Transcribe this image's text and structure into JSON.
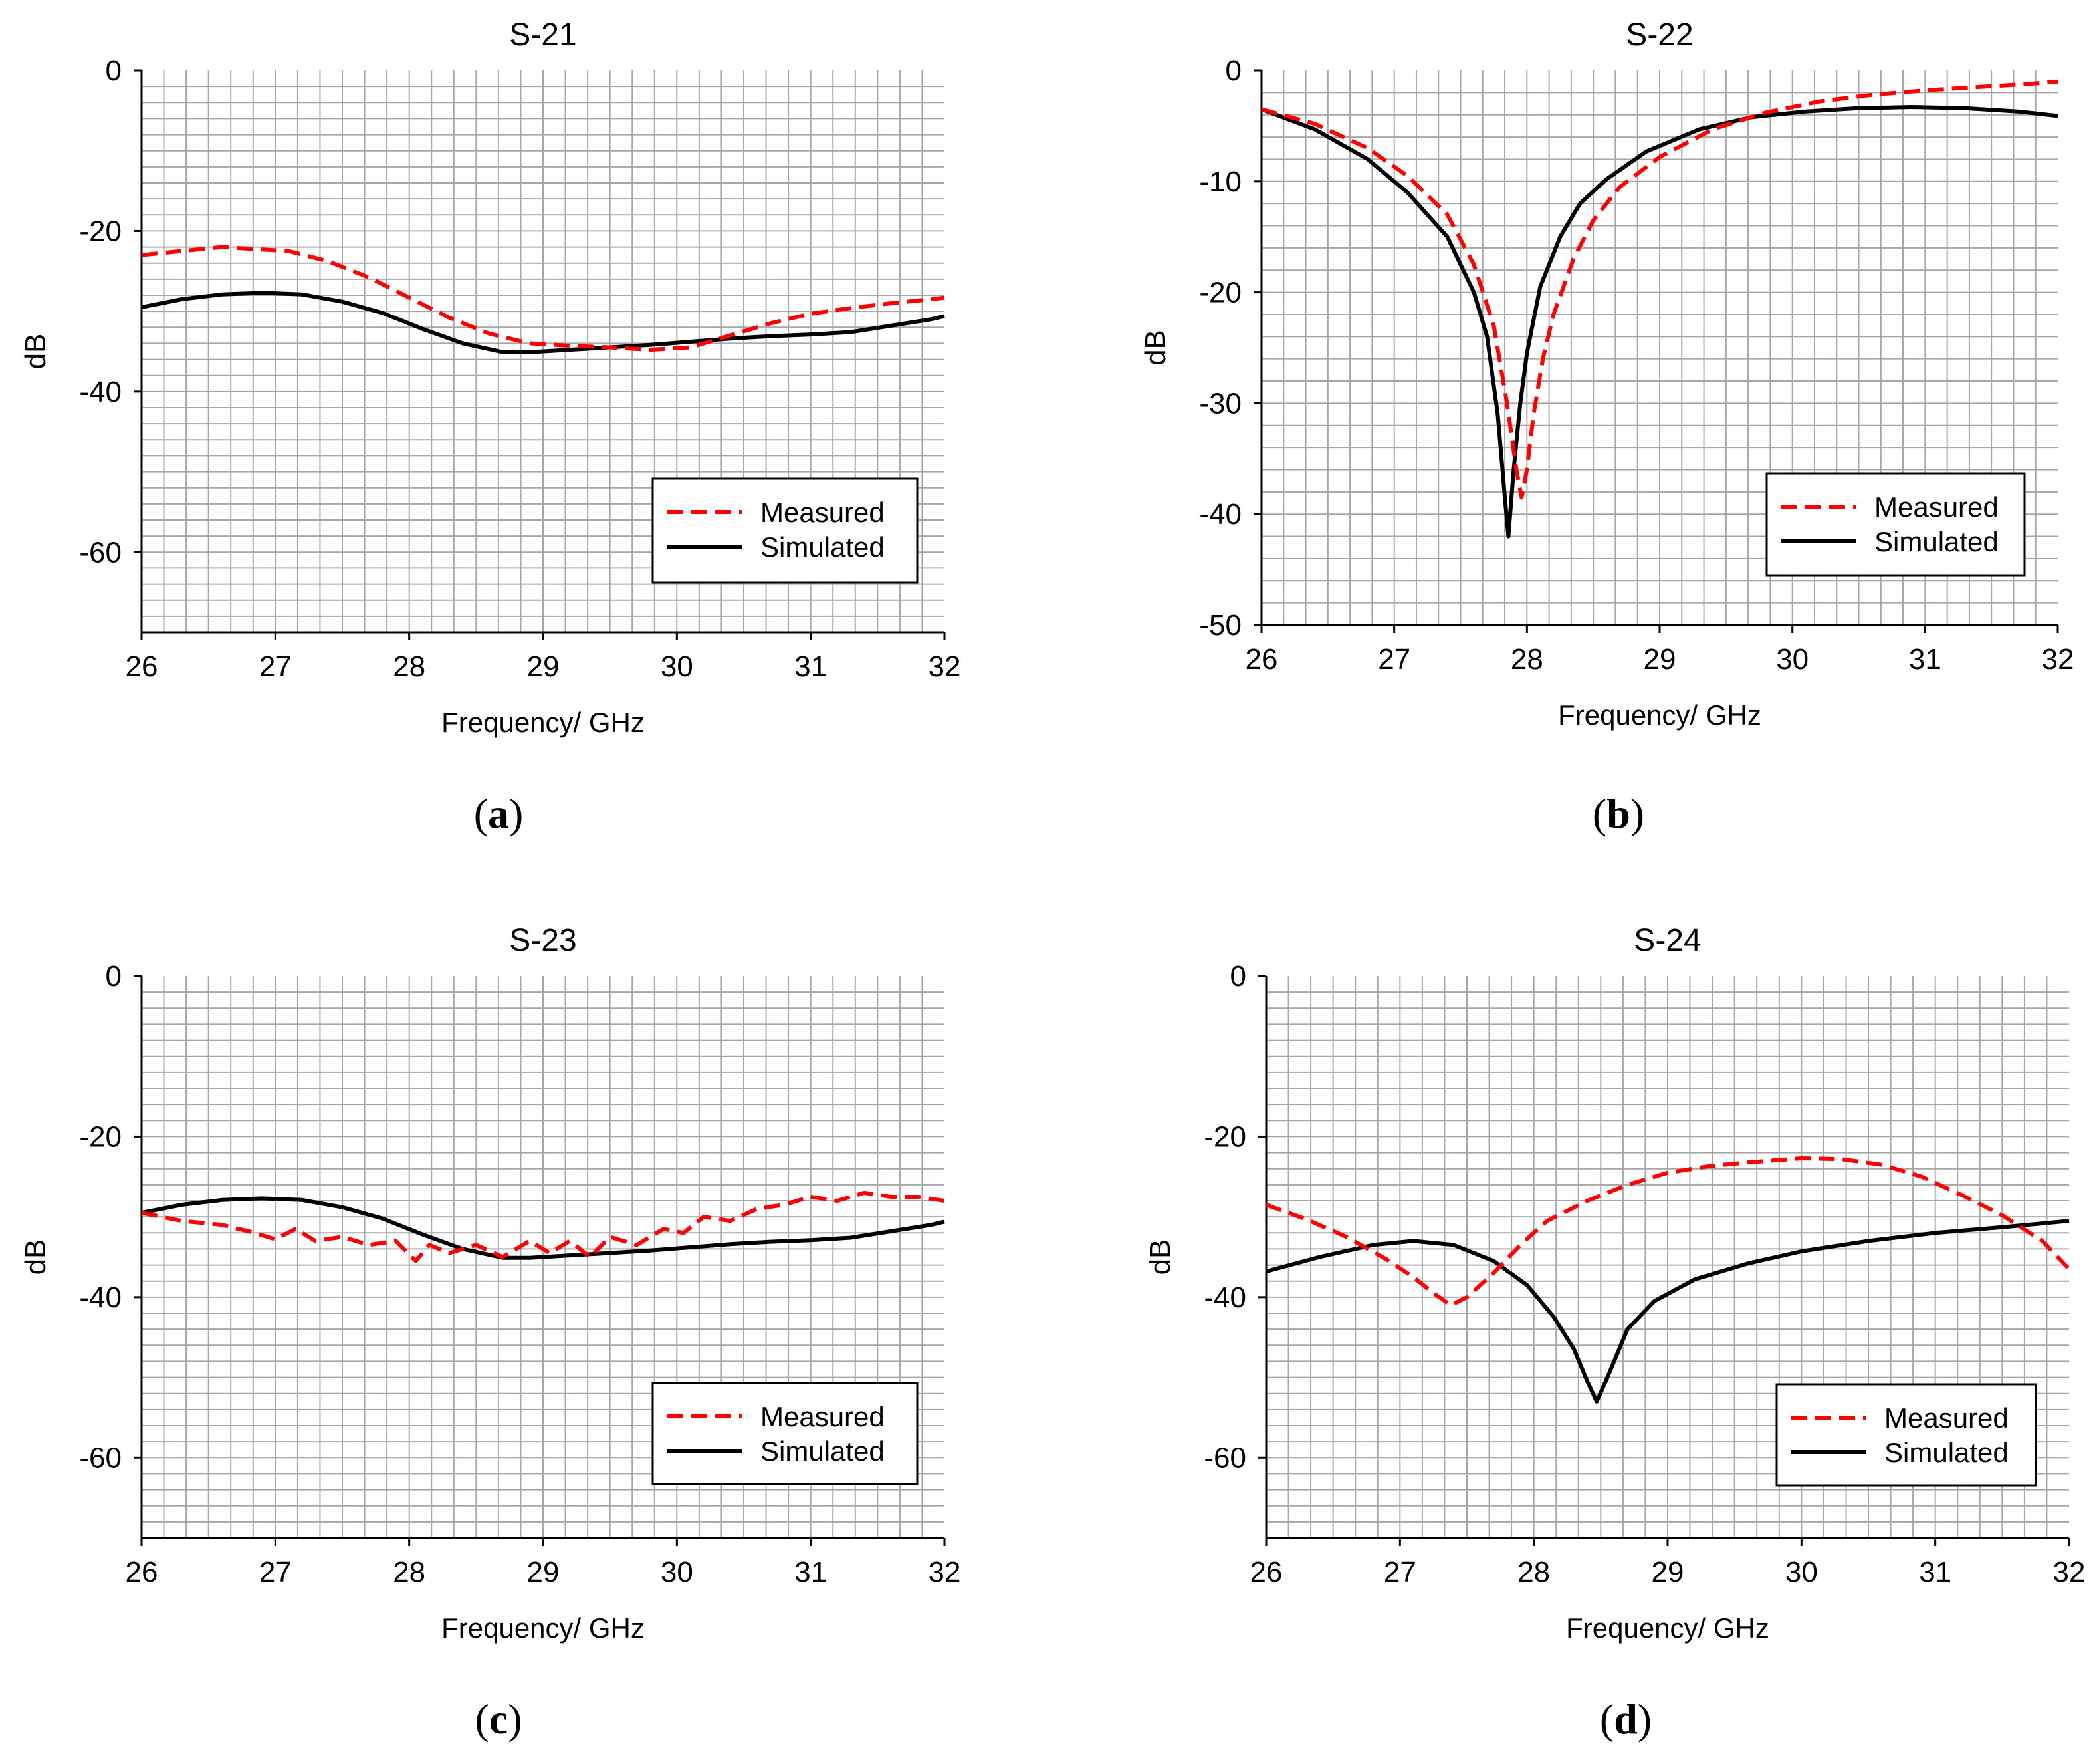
{
  "figure": {
    "captions": [
      "(a)",
      "(b)",
      "(c)",
      "(d)"
    ],
    "colors": {
      "measured": "#ff0000",
      "simulated": "#000000",
      "grid": "#a6a6a6",
      "background": "#ffffff"
    }
  },
  "chart_data": [
    {
      "type": "line",
      "title": "S-21",
      "xlabel": "Frequency/ GHz",
      "ylabel": "dB",
      "xlim": [
        26,
        32
      ],
      "ylim": [
        -70,
        0
      ],
      "xticks": [
        26,
        27,
        28,
        29,
        30,
        31,
        32
      ],
      "yticks": [
        0,
        -20,
        -40,
        -60
      ],
      "grid": true,
      "legend_position": "bottom-right",
      "series": [
        {
          "name": "Measured",
          "style": "dashed",
          "x": [
            26,
            26.3,
            26.6,
            26.9,
            27.1,
            27.4,
            27.7,
            28.0,
            28.3,
            28.6,
            28.9,
            29.2,
            29.5,
            29.8,
            30.1,
            30.4,
            30.7,
            31.0,
            31.3,
            31.6,
            31.9,
            32
          ],
          "y": [
            -23,
            -22.5,
            -22,
            -22.3,
            -22.5,
            -23.8,
            -25.8,
            -28.3,
            -30.8,
            -32.8,
            -34,
            -34.3,
            -34.5,
            -34.8,
            -34.5,
            -33,
            -31.5,
            -30.3,
            -29.6,
            -29,
            -28.5,
            -28.3
          ]
        },
        {
          "name": "Simulated",
          "style": "solid",
          "x": [
            26,
            26.3,
            26.6,
            26.9,
            27.2,
            27.5,
            27.8,
            28.1,
            28.4,
            28.7,
            28.9,
            29.2,
            29.5,
            29.8,
            30.1,
            30.4,
            30.7,
            31.0,
            31.3,
            31.6,
            31.9,
            32
          ],
          "y": [
            -29.5,
            -28.5,
            -27.9,
            -27.7,
            -27.9,
            -28.8,
            -30.2,
            -32.2,
            -34,
            -35.1,
            -35.1,
            -34.8,
            -34.5,
            -34.2,
            -33.8,
            -33.4,
            -33.1,
            -32.9,
            -32.6,
            -31.8,
            -31,
            -30.6
          ]
        }
      ]
    },
    {
      "type": "line",
      "title": "S-22",
      "xlabel": "Frequency/ GHz",
      "ylabel": "dB",
      "xlim": [
        26,
        32
      ],
      "ylim": [
        -50,
        0
      ],
      "xticks": [
        26,
        27,
        28,
        29,
        30,
        31,
        32
      ],
      "yticks": [
        0,
        -10,
        -20,
        -30,
        -40,
        -50
      ],
      "grid": true,
      "legend_position": "bottom-right",
      "series": [
        {
          "name": "Measured",
          "style": "dashed",
          "x": [
            26,
            26.4,
            26.8,
            27.1,
            27.4,
            27.6,
            27.75,
            27.85,
            27.92,
            27.96,
            28.0,
            28.05,
            28.12,
            28.2,
            28.35,
            28.5,
            28.7,
            29.0,
            29.4,
            29.8,
            30.2,
            30.6,
            31.0,
            31.4,
            31.8,
            32
          ],
          "y": [
            -3.5,
            -4.8,
            -7,
            -9.5,
            -13,
            -17.5,
            -23,
            -30,
            -36,
            -38.5,
            -36,
            -31,
            -26,
            -22,
            -17,
            -13.5,
            -10.5,
            -7.8,
            -5.3,
            -3.8,
            -2.8,
            -2.2,
            -1.8,
            -1.5,
            -1.2,
            -1.0
          ]
        },
        {
          "name": "Simulated",
          "style": "solid",
          "x": [
            26,
            26.4,
            26.8,
            27.1,
            27.4,
            27.6,
            27.7,
            27.78,
            27.83,
            27.86,
            27.9,
            27.95,
            28.0,
            28.1,
            28.25,
            28.4,
            28.6,
            28.9,
            29.3,
            29.7,
            30.1,
            30.5,
            30.9,
            31.3,
            31.7,
            32
          ],
          "y": [
            -3.5,
            -5.3,
            -8,
            -11,
            -15,
            -20,
            -24,
            -31,
            -38,
            -42,
            -36,
            -30,
            -25.5,
            -19.5,
            -15,
            -12,
            -9.8,
            -7.3,
            -5.3,
            -4.2,
            -3.7,
            -3.4,
            -3.3,
            -3.4,
            -3.7,
            -4.1
          ]
        }
      ]
    },
    {
      "type": "line",
      "title": "S-23",
      "xlabel": "Frequency/ GHz",
      "ylabel": "dB",
      "xlim": [
        26,
        32
      ],
      "ylim": [
        -70,
        0
      ],
      "xticks": [
        26,
        27,
        28,
        29,
        30,
        31,
        32
      ],
      "yticks": [
        0,
        -20,
        -40,
        -60
      ],
      "grid": true,
      "legend_position": "bottom-right",
      "series": [
        {
          "name": "Measured",
          "style": "dashed",
          "x": [
            26,
            26.3,
            26.6,
            26.8,
            27.0,
            27.15,
            27.3,
            27.5,
            27.7,
            27.9,
            28.05,
            28.15,
            28.3,
            28.5,
            28.7,
            28.9,
            29.05,
            29.2,
            29.35,
            29.5,
            29.7,
            29.9,
            30.05,
            30.2,
            30.4,
            30.6,
            30.8,
            31.0,
            31.2,
            31.4,
            31.6,
            31.8,
            32
          ],
          "y": [
            -29.5,
            -30.5,
            -31,
            -31.8,
            -32.8,
            -31.5,
            -33,
            -32.5,
            -33.5,
            -33,
            -35.5,
            -33.5,
            -34.5,
            -33.5,
            -35,
            -33,
            -34.5,
            -33,
            -35,
            -32.5,
            -33.5,
            -31.5,
            -32,
            -30,
            -30.5,
            -29,
            -28.5,
            -27.5,
            -28,
            -27,
            -27.5,
            -27.5,
            -28
          ]
        },
        {
          "name": "Simulated",
          "style": "solid",
          "x": [
            26,
            26.3,
            26.6,
            26.9,
            27.2,
            27.5,
            27.8,
            28.1,
            28.4,
            28.7,
            28.9,
            29.2,
            29.5,
            29.8,
            30.1,
            30.4,
            30.7,
            31.0,
            31.3,
            31.6,
            31.9,
            32
          ],
          "y": [
            -29.5,
            -28.5,
            -27.9,
            -27.7,
            -27.9,
            -28.8,
            -30.2,
            -32.2,
            -34,
            -35.1,
            -35.1,
            -34.8,
            -34.5,
            -34.2,
            -33.8,
            -33.4,
            -33.1,
            -32.9,
            -32.6,
            -31.8,
            -31,
            -30.6
          ]
        }
      ]
    },
    {
      "type": "line",
      "title": "S-24",
      "xlabel": "Frequency/ GHz",
      "ylabel": "dB",
      "xlim": [
        26,
        32
      ],
      "ylim": [
        -70,
        0
      ],
      "xticks": [
        26,
        27,
        28,
        29,
        30,
        31,
        32
      ],
      "yticks": [
        0,
        -20,
        -40,
        -60
      ],
      "grid": true,
      "legend_position": "bottom-right",
      "series": [
        {
          "name": "Measured",
          "style": "dashed",
          "x": [
            26,
            26.3,
            26.6,
            26.9,
            27.1,
            27.25,
            27.38,
            27.5,
            27.7,
            27.9,
            28.1,
            28.4,
            28.7,
            29.0,
            29.3,
            29.6,
            30.0,
            30.3,
            30.6,
            30.9,
            31.2,
            31.5,
            31.8,
            32
          ],
          "y": [
            -28.5,
            -30.3,
            -32.5,
            -35.3,
            -37.5,
            -39.5,
            -41,
            -40,
            -37,
            -33.5,
            -30.5,
            -28,
            -26,
            -24.5,
            -23.7,
            -23.2,
            -22.7,
            -22.8,
            -23.5,
            -25,
            -27.3,
            -29.8,
            -33,
            -36.5
          ]
        },
        {
          "name": "Simulated",
          "style": "solid",
          "x": [
            26,
            26.4,
            26.8,
            27.1,
            27.4,
            27.7,
            27.95,
            28.15,
            28.3,
            28.4,
            28.47,
            28.55,
            28.7,
            28.9,
            29.2,
            29.6,
            30.0,
            30.5,
            31.0,
            31.5,
            32
          ],
          "y": [
            -36.8,
            -35,
            -33.5,
            -33,
            -33.5,
            -35.5,
            -38.5,
            -42.5,
            -46.5,
            -50.5,
            -53,
            -50,
            -44,
            -40.5,
            -37.8,
            -35.8,
            -34.3,
            -33,
            -32,
            -31.3,
            -30.5
          ]
        }
      ]
    }
  ]
}
